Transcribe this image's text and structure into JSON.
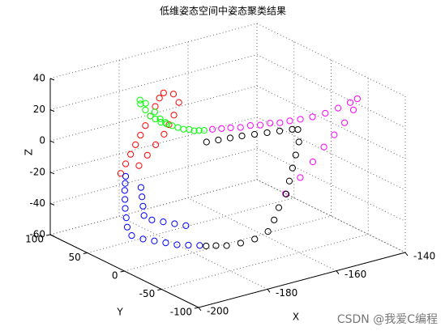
{
  "chart_data": {
    "type": "scatter3d",
    "title": "低维姿态空间中姿态聚类结果",
    "x_label": "X",
    "y_label": "Y",
    "z_label": "Z",
    "xlim": [
      -200,
      -140
    ],
    "xticks": [
      -200,
      -180,
      -160,
      -140
    ],
    "ylim": [
      -100,
      100
    ],
    "yticks": [
      -100,
      -50,
      0,
      50,
      100
    ],
    "zlim": [
      -60,
      40
    ],
    "zticks": [
      -60,
      -40,
      -20,
      0,
      20,
      40
    ],
    "grid": true,
    "marker": "circle",
    "series": [
      {
        "color": "#ff0000",
        "x": [
          -186,
          -185,
          -184,
          -183,
          -182,
          -181,
          -180,
          -179,
          -178,
          -177,
          -182,
          -180,
          -178,
          -176,
          -175,
          -174,
          -173,
          -175
        ],
        "y": [
          70,
          68,
          66,
          64,
          62,
          60,
          58,
          56,
          55,
          54,
          64,
          62,
          60,
          58,
          56,
          54,
          52,
          50
        ],
        "z": [
          -22,
          -16,
          -10,
          -4,
          2,
          8,
          14,
          20,
          25,
          28,
          -18,
          -12,
          -6,
          0,
          6,
          12,
          20,
          27
        ]
      },
      {
        "color": "#00ff00",
        "x": [
          -182,
          -181,
          -180,
          -179,
          -178,
          -177,
          -176,
          -175,
          -174,
          -173,
          -172,
          -171,
          -170,
          -183,
          -182,
          -180,
          -178,
          -176
        ],
        "y": [
          62,
          60,
          58,
          56,
          53,
          50,
          47,
          44,
          41,
          38,
          36,
          34,
          32,
          58,
          55,
          52,
          54,
          56
        ],
        "z": [
          22,
          18,
          14,
          12,
          10,
          9,
          8,
          7,
          6,
          6,
          5,
          5,
          5,
          26,
          24,
          18,
          12,
          8
        ]
      },
      {
        "color": "#ff00ff",
        "x": [
          -168,
          -166,
          -164,
          -162,
          -160,
          -158,
          -156,
          -154,
          -152,
          -150,
          -148,
          -146,
          -144,
          -142,
          -141,
          -143,
          -146,
          -149,
          -152,
          -155,
          -158,
          -161
        ],
        "y": [
          30,
          27,
          24,
          20,
          16,
          12,
          8,
          4,
          0,
          -5,
          -12,
          -20,
          -28,
          -35,
          -40,
          -44,
          -46,
          -46,
          -46,
          -45,
          -42,
          -36
        ],
        "z": [
          5,
          5,
          5,
          5,
          6,
          6,
          7,
          7,
          8,
          9,
          11,
          14,
          18,
          22,
          25,
          20,
          14,
          8,
          2,
          -6,
          -15,
          -25
        ]
      },
      {
        "color": "#000000",
        "x": [
          -171,
          -168,
          -165,
          -162,
          -159,
          -156,
          -153,
          -150,
          -149,
          -150,
          -152,
          -154,
          -156,
          -158,
          -161,
          -163,
          -165,
          -168,
          -171,
          -174,
          -176,
          -178
        ],
        "y": [
          24,
          22,
          20,
          18,
          15,
          12,
          9,
          6,
          3,
          -3,
          -8,
          -13,
          -18,
          -23,
          -27,
          -30,
          -31,
          -27,
          -22,
          -17,
          -12,
          -8
        ],
        "z": [
          0,
          0,
          0,
          0,
          0,
          0,
          0,
          0,
          0,
          -6,
          -12,
          -18,
          -24,
          -30,
          -36,
          -42,
          -48,
          -52,
          -54,
          -55,
          -55,
          -55
        ]
      },
      {
        "color": "#0000ff",
        "x": [
          -179,
          -181,
          -183,
          -185,
          -187,
          -189,
          -191,
          -191,
          -190,
          -189,
          -188,
          -187,
          -186,
          -185,
          -180,
          -182,
          -184,
          -186,
          -187,
          -186,
          -185,
          -184
        ],
        "y": [
          -4,
          2,
          8,
          14,
          20,
          26,
          32,
          38,
          44,
          50,
          55,
          60,
          64,
          68,
          10,
          16,
          22,
          28,
          34,
          40,
          46,
          52
        ],
        "z": [
          -55,
          -55,
          -55,
          -54,
          -53,
          -52,
          -50,
          -46,
          -42,
          -38,
          -34,
          -30,
          -27,
          -24,
          -45,
          -44,
          -43,
          -42,
          -40,
          -36,
          -32,
          -28
        ]
      }
    ],
    "watermark": "CSDN @我爱C编程"
  }
}
